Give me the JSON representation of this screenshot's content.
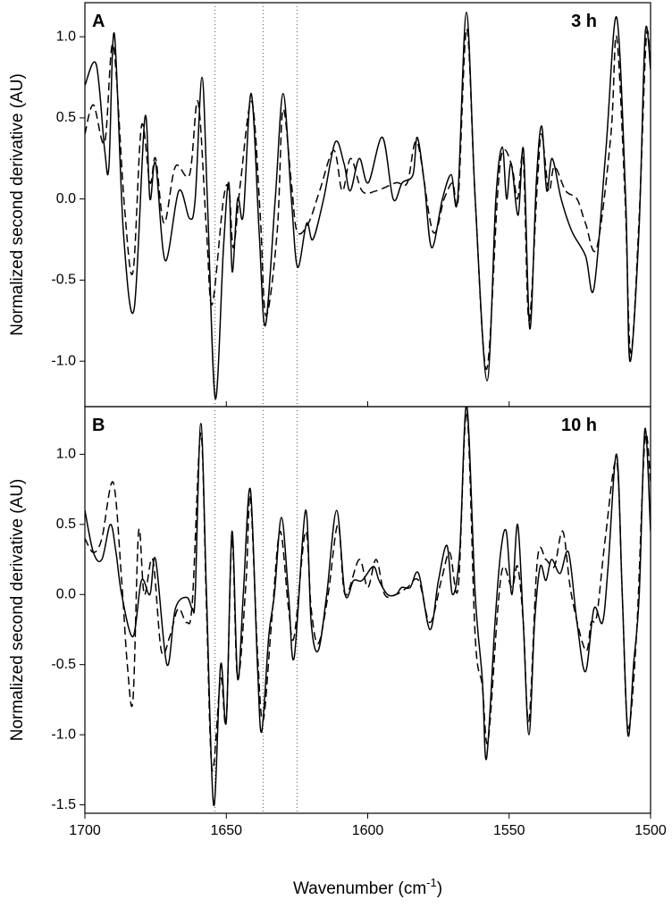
{
  "chart_data": [
    {
      "type": "line",
      "label": "A",
      "annotation": "3 h",
      "ylabel": "Normalized second derivative (AU)",
      "xlim": [
        1700,
        1500
      ],
      "xticks": [
        1700,
        1650,
        1600,
        1550,
        1500
      ],
      "ylim": [
        -1.28,
        1.21
      ],
      "yticks": [
        {
          "value": -1,
          "label": "-1.0"
        },
        -0.5,
        {
          "value": 0,
          "label": "0.0"
        },
        0.5,
        {
          "value": 1,
          "label": "1.0"
        }
      ],
      "reference_lines": [
        1654,
        1637,
        1625
      ],
      "series": [
        {
          "color": "#000000",
          "line_style": "solid",
          "x": [
            1700,
            1696,
            1693,
            1691.5,
            1689.6,
            1686.4,
            1682.6,
            1678.8,
            1677,
            1675,
            1671.6,
            1666.8,
            1663,
            1661,
            1658.6,
            1656.7,
            1653.9,
            1651,
            1649.1,
            1647.9,
            1646,
            1644,
            1641.2,
            1638.4,
            1636.2,
            1632.7,
            1629.9,
            1627,
            1624.8,
            1621.6,
            1619.4,
            1615.6,
            1611.5,
            1608.4,
            1606.2,
            1603,
            1599.8,
            1594.8,
            1591,
            1587.8,
            1584,
            1582.5,
            1580,
            1577.4,
            1573.6,
            1570.5,
            1568.2,
            1565.1,
            1562,
            1557.8,
            1554.7,
            1552.4,
            1550.9,
            1549.3,
            1546.8,
            1544.9,
            1542.7,
            1540.4,
            1538.5,
            1536.7,
            1534.8,
            1531.6,
            1527.8,
            1523,
            1520,
            1515.8,
            1512,
            1508.8,
            1507.3,
            1504.1,
            1501.9,
            1500
          ],
          "values": [
            0.7,
            0.83,
            0.3,
            0.2,
            1.02,
            -0.2,
            -0.68,
            0.5,
            0,
            0.22,
            -0.38,
            0.05,
            -0.12,
            0,
            0.75,
            0,
            -1.23,
            -0.3,
            0.1,
            -0.45,
            0,
            -0.1,
            0.65,
            -0.2,
            -0.78,
            0,
            0.65,
            0,
            -0.42,
            -0.15,
            -0.25,
            0,
            0.35,
            0.22,
            0.05,
            0.25,
            0.1,
            0.38,
            0,
            0.1,
            0.15,
            0.38,
            0.1,
            -0.3,
            0,
            0.15,
            0,
            1.15,
            0,
            -1.12,
            0,
            0.32,
            0,
            0.22,
            -0.1,
            0.3,
            -0.8,
            0.1,
            0.45,
            0.05,
            0.25,
            0,
            -0.2,
            -0.35,
            -0.55,
            0.3,
            1.12,
            0,
            -1,
            -0.2,
            1.02,
            0.8
          ]
        },
        {
          "color": "#000000",
          "line_style": "dashed",
          "x": [
            1700,
            1697,
            1693,
            1690,
            1686,
            1683,
            1680,
            1677,
            1675,
            1672,
            1668,
            1663,
            1660,
            1657,
            1655,
            1651,
            1649,
            1647.5,
            1645,
            1641,
            1638,
            1636,
            1632,
            1630,
            1627,
            1625,
            1621,
            1617,
            1612,
            1609,
            1606,
            1602,
            1597,
            1590,
            1586,
            1582.5,
            1577,
            1573,
            1570,
            1568,
            1565,
            1562,
            1558,
            1554,
            1552,
            1549,
            1547,
            1545,
            1543,
            1540,
            1538.5,
            1536,
            1534,
            1530,
            1526,
            1523,
            1519,
            1514,
            1512,
            1509,
            1507,
            1504,
            1501.5,
            1500
          ],
          "values": [
            0.4,
            0.58,
            0.35,
            0.95,
            -0.05,
            -0.45,
            0.45,
            0.1,
            0.25,
            -0.15,
            0.2,
            0.15,
            0.6,
            -0.2,
            -0.65,
            0,
            0.05,
            -0.3,
            0.1,
            0.6,
            -0.1,
            -0.72,
            -0.2,
            0.55,
            0.1,
            -0.2,
            -0.15,
            0.05,
            0.3,
            0.05,
            0.25,
            0.05,
            0.05,
            0.1,
            0.1,
            0.35,
            -0.2,
            0,
            0.1,
            0,
            1.05,
            0,
            -1.05,
            0.05,
            0.3,
            0.2,
            0,
            0.25,
            -0.75,
            0.1,
            0.4,
            0.05,
            0.2,
            0.05,
            0,
            -0.15,
            -0.3,
            0.4,
            1,
            0,
            -0.95,
            -0.1,
            1,
            0.8
          ]
        }
      ]
    },
    {
      "type": "line",
      "label": "B",
      "annotation": "10 h",
      "ylabel": "Normalized second derivative (AU)",
      "xlabel": {
        "text": "Wavenumber (cm",
        "sup": "-1",
        "tail": ")"
      },
      "xlim": [
        1700,
        1500
      ],
      "xticks": [
        1700,
        1650,
        1600,
        1550,
        1500
      ],
      "ylim": [
        -1.56,
        1.34
      ],
      "yticks": [
        -1.5,
        {
          "value": -1,
          "label": "-1.0"
        },
        -0.5,
        {
          "value": 0,
          "label": "0.0"
        },
        0.5,
        {
          "value": 1,
          "label": "1.0"
        }
      ],
      "reference_lines": [
        1654,
        1637,
        1625
      ],
      "series": [
        {
          "color": "#000000",
          "line_style": "solid",
          "x": [
            1700,
            1697,
            1694,
            1691,
            1689,
            1687,
            1683,
            1680,
            1677,
            1675,
            1671,
            1668,
            1664,
            1662,
            1661,
            1659,
            1657,
            1654.5,
            1652,
            1650,
            1648,
            1646,
            1644,
            1641.5,
            1639,
            1637.5,
            1635,
            1633,
            1630.5,
            1628,
            1626,
            1622,
            1620,
            1617.5,
            1614.5,
            1611,
            1608,
            1605,
            1602,
            1598,
            1596,
            1593,
            1590,
            1588,
            1585,
            1582,
            1578,
            1575,
            1572,
            1570,
            1567.5,
            1565,
            1562,
            1559.5,
            1558,
            1555,
            1553,
            1551,
            1549,
            1547,
            1545,
            1543,
            1541,
            1539,
            1537,
            1535,
            1532,
            1529,
            1526,
            1523,
            1520,
            1517,
            1515,
            1512,
            1510,
            1508,
            1506,
            1504,
            1502,
            1500
          ],
          "values": [
            0.6,
            0.3,
            0.25,
            0.5,
            0.3,
            0,
            -0.3,
            0.1,
            0,
            0.25,
            -0.5,
            -0.1,
            -0.02,
            -0.1,
            0,
            1.22,
            0,
            -1.5,
            -0.5,
            -0.9,
            0.45,
            -0.6,
            0,
            0.75,
            -0.5,
            -0.98,
            -0.3,
            0,
            0.55,
            0,
            -0.45,
            0.6,
            -0.2,
            -0.4,
            0,
            0.6,
            0,
            0.1,
            0.1,
            0.2,
            0.1,
            0,
            0,
            0.05,
            0.05,
            0.15,
            -0.25,
            0.1,
            0.35,
            0,
            0.3,
            1.35,
            0,
            -0.6,
            -1.17,
            -0.2,
            0.3,
            0.45,
            0,
            0.5,
            -0.2,
            -1,
            -0.2,
            0.2,
            0.1,
            0.25,
            0.15,
            0.3,
            -0.2,
            -0.55,
            -0.1,
            -0.2,
            0.2,
            1,
            0,
            -1,
            -0.5,
            0,
            1.18,
            0.45
          ]
        },
        {
          "color": "#000000",
          "line_style": "dashed",
          "x": [
            1700,
            1697,
            1694,
            1690,
            1687,
            1685,
            1683,
            1681,
            1679,
            1676,
            1673,
            1670,
            1667,
            1664,
            1662,
            1659,
            1657,
            1655,
            1652,
            1650,
            1648,
            1646,
            1643,
            1641.5,
            1639,
            1637,
            1634,
            1631,
            1628,
            1626,
            1622,
            1620,
            1617.5,
            1614,
            1610.5,
            1608,
            1603,
            1600,
            1597,
            1594,
            1590,
            1586,
            1582,
            1578,
            1574,
            1571,
            1568,
            1565,
            1562,
            1559.5,
            1557.5,
            1554,
            1552,
            1549,
            1547,
            1545,
            1543,
            1540,
            1537,
            1534,
            1531,
            1528,
            1523,
            1521,
            1519,
            1516,
            1512,
            1510,
            1508,
            1505,
            1502,
            1500
          ],
          "values": [
            0.4,
            0.3,
            0.4,
            0.8,
            0.1,
            -0.5,
            -0.75,
            0.45,
            0,
            0.25,
            -0.4,
            -0.3,
            -0.1,
            -0.2,
            -0.05,
            1.15,
            -0.1,
            -1.25,
            -0.6,
            -0.9,
            0.4,
            -0.6,
            0.1,
            0.7,
            -0.4,
            -0.9,
            -0.2,
            0.45,
            -0.1,
            -0.3,
            0.45,
            -0.1,
            -0.35,
            0,
            0.5,
            0,
            0.25,
            0.05,
            0.25,
            0,
            0,
            0.05,
            0.1,
            -0.2,
            0.1,
            0.3,
            0.05,
            1.3,
            -0.3,
            -0.65,
            -1.05,
            -0.1,
            0.2,
            0.05,
            0.2,
            -0.2,
            -0.9,
            0.25,
            0.25,
            0.2,
            0.45,
            0,
            -0.4,
            -0.2,
            -0.15,
            0.4,
            0.95,
            0,
            -0.95,
            -0.3,
            1.1,
            0.8
          ]
        }
      ]
    }
  ]
}
